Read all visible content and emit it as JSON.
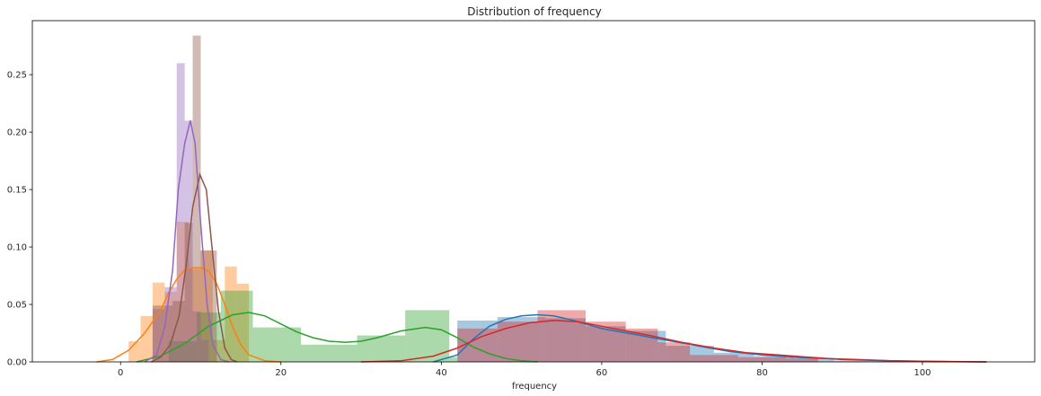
{
  "chart_data": {
    "type": "histogram-kde",
    "title": "Distribution of frequency",
    "xlabel": "frequency",
    "ylabel": "",
    "xlim": [
      -11,
      114
    ],
    "ylim": [
      0,
      0.297
    ],
    "xticks": [
      0,
      20,
      40,
      60,
      80,
      100
    ],
    "yticks": [
      0.0,
      0.05,
      0.1,
      0.15,
      0.2,
      0.25
    ],
    "grid": false,
    "legend": false,
    "series": [
      {
        "color": "#1f77b4",
        "bins": [
          [
            42,
            47,
            0.036
          ],
          [
            47,
            53,
            0.039
          ],
          [
            53,
            58,
            0.038
          ],
          [
            58,
            63,
            0.031
          ],
          [
            63,
            68,
            0.027
          ],
          [
            68,
            74,
            0.014
          ],
          [
            74,
            79,
            0.008
          ],
          [
            79,
            84,
            0.005
          ],
          [
            84,
            89,
            0.003
          ],
          [
            89,
            95,
            0.001
          ],
          [
            95,
            100,
            0.001
          ]
        ],
        "kde": [
          [
            39,
            0
          ],
          [
            42,
            0.006
          ],
          [
            44,
            0.02
          ],
          [
            46,
            0.031
          ],
          [
            48,
            0.037
          ],
          [
            50,
            0.04
          ],
          [
            52,
            0.041
          ],
          [
            54,
            0.04
          ],
          [
            56,
            0.037
          ],
          [
            58,
            0.033
          ],
          [
            60,
            0.029
          ],
          [
            64,
            0.024
          ],
          [
            68,
            0.019
          ],
          [
            72,
            0.014
          ],
          [
            76,
            0.009
          ],
          [
            80,
            0.006
          ],
          [
            84,
            0.004
          ],
          [
            88,
            0.003
          ],
          [
            92,
            0.002
          ],
          [
            96,
            0.001
          ],
          [
            100,
            0.0005
          ],
          [
            104,
            0.0002
          ],
          [
            108,
            0
          ]
        ]
      },
      {
        "color": "#ff7f0e",
        "bins": [
          [
            1,
            2.5,
            0.018
          ],
          [
            2.5,
            4,
            0.04
          ],
          [
            4,
            5.5,
            0.069
          ],
          [
            5.5,
            7,
            0.061
          ],
          [
            7,
            8.5,
            0.122
          ],
          [
            8.5,
            10,
            0.081
          ],
          [
            10,
            11.5,
            0.097
          ],
          [
            11.5,
            13,
            0.019
          ],
          [
            13,
            14.5,
            0.083
          ],
          [
            14.5,
            16,
            0.068
          ]
        ],
        "kde": [
          [
            -3,
            0
          ],
          [
            -1,
            0.002
          ],
          [
            1,
            0.01
          ],
          [
            3,
            0.025
          ],
          [
            5,
            0.045
          ],
          [
            6,
            0.06
          ],
          [
            7,
            0.072
          ],
          [
            8,
            0.08
          ],
          [
            9,
            0.082
          ],
          [
            10,
            0.082
          ],
          [
            11,
            0.079
          ],
          [
            12,
            0.068
          ],
          [
            13,
            0.05
          ],
          [
            14,
            0.03
          ],
          [
            15,
            0.015
          ],
          [
            16,
            0.006
          ],
          [
            18,
            0.001
          ],
          [
            20,
            0
          ]
        ]
      },
      {
        "color": "#2ca02c",
        "bins": [
          [
            6,
            9.5,
            0.018
          ],
          [
            9.5,
            12.5,
            0.043
          ],
          [
            12.5,
            16.5,
            0.062
          ],
          [
            16.5,
            22.5,
            0.03
          ],
          [
            22.5,
            29.5,
            0.015
          ],
          [
            29.5,
            35.5,
            0.023
          ],
          [
            35.5,
            41,
            0.045
          ],
          [
            41,
            42,
            0.004
          ]
        ],
        "kde": [
          [
            2,
            0
          ],
          [
            5,
            0.005
          ],
          [
            8,
            0.016
          ],
          [
            11,
            0.031
          ],
          [
            14,
            0.041
          ],
          [
            16,
            0.043
          ],
          [
            18,
            0.04
          ],
          [
            20,
            0.033
          ],
          [
            22,
            0.026
          ],
          [
            24,
            0.021
          ],
          [
            26,
            0.018
          ],
          [
            28,
            0.017
          ],
          [
            30,
            0.018
          ],
          [
            32,
            0.021
          ],
          [
            35,
            0.027
          ],
          [
            38,
            0.03
          ],
          [
            40,
            0.028
          ],
          [
            42,
            0.021
          ],
          [
            44,
            0.013
          ],
          [
            46,
            0.007
          ],
          [
            48,
            0.003
          ],
          [
            50,
            0.001
          ],
          [
            52,
            0
          ]
        ]
      },
      {
        "color": "#d62728",
        "bins": [
          [
            42,
            47,
            0.029
          ],
          [
            47,
            52,
            0.035
          ],
          [
            52,
            58,
            0.045
          ],
          [
            58,
            63,
            0.035
          ],
          [
            63,
            67,
            0.029
          ],
          [
            67,
            71,
            0.017
          ],
          [
            71,
            77,
            0.006
          ],
          [
            77,
            83,
            0.004
          ],
          [
            83,
            87,
            0.003
          ]
        ],
        "kde": [
          [
            30,
            0
          ],
          [
            35,
            0.001
          ],
          [
            39,
            0.005
          ],
          [
            42,
            0.012
          ],
          [
            45,
            0.022
          ],
          [
            48,
            0.029
          ],
          [
            51,
            0.034
          ],
          [
            54,
            0.036
          ],
          [
            57,
            0.035
          ],
          [
            60,
            0.031
          ],
          [
            63,
            0.027
          ],
          [
            66,
            0.023
          ],
          [
            70,
            0.017
          ],
          [
            74,
            0.012
          ],
          [
            78,
            0.008
          ],
          [
            82,
            0.006
          ],
          [
            86,
            0.004
          ],
          [
            90,
            0.002
          ],
          [
            96,
            0.001
          ],
          [
            102,
            0.0004
          ],
          [
            108,
            0
          ]
        ]
      },
      {
        "color": "#9467bd",
        "bins": [
          [
            4,
            5.5,
            0.046
          ],
          [
            5.5,
            7,
            0.065
          ],
          [
            7,
            8,
            0.26
          ],
          [
            8,
            9,
            0.21
          ],
          [
            9,
            10,
            0.044
          ],
          [
            10,
            11,
            0.019
          ]
        ],
        "kde": [
          [
            3,
            0
          ],
          [
            4.5,
            0.006
          ],
          [
            5.5,
            0.03
          ],
          [
            6.5,
            0.08
          ],
          [
            7.2,
            0.15
          ],
          [
            8,
            0.19
          ],
          [
            8.7,
            0.21
          ],
          [
            9.3,
            0.19
          ],
          [
            10,
            0.12
          ],
          [
            10.8,
            0.05
          ],
          [
            11.5,
            0.015
          ],
          [
            12.5,
            0.002
          ],
          [
            13.5,
            0
          ]
        ]
      },
      {
        "color": "#8c564b",
        "bins": [
          [
            4,
            6.5,
            0.049
          ],
          [
            6.5,
            8,
            0.053
          ],
          [
            8,
            9,
            0.121
          ],
          [
            9,
            10,
            0.284
          ],
          [
            10,
            11,
            0.097
          ],
          [
            11,
            12,
            0.097
          ]
        ],
        "kde": [
          [
            3.8,
            0
          ],
          [
            5,
            0.004
          ],
          [
            6.2,
            0.015
          ],
          [
            7.3,
            0.04
          ],
          [
            8.2,
            0.085
          ],
          [
            9.0,
            0.135
          ],
          [
            9.9,
            0.163
          ],
          [
            10.7,
            0.15
          ],
          [
            11.4,
            0.1
          ],
          [
            12.2,
            0.045
          ],
          [
            13,
            0.012
          ],
          [
            13.8,
            0.002
          ],
          [
            14.5,
            0
          ]
        ]
      }
    ]
  }
}
